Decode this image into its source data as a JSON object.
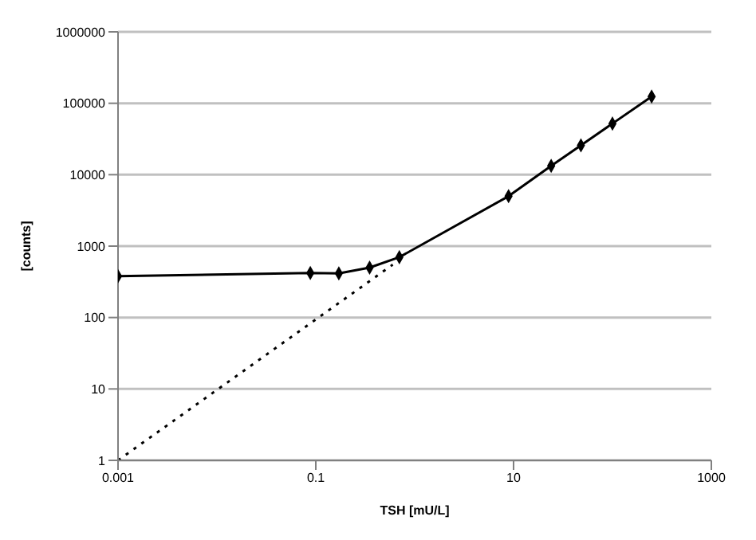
{
  "chart_data": {
    "type": "line",
    "xlabel": "TSH [mU/L]",
    "ylabel": "[counts]",
    "log": "xy",
    "grid": "y",
    "xlim": [
      0.001,
      1000
    ],
    "xticks": [
      0.001,
      0.1,
      10,
      1000
    ],
    "ylim": [
      1,
      1000000
    ],
    "yticks": [
      1,
      10,
      100,
      1000,
      10000,
      100000,
      1000000
    ],
    "series": [
      {
        "color": "#000000",
        "marker": "diamond",
        "line_style": "solid",
        "x": [
          0.001,
          0.088,
          0.171,
          0.35,
          0.7,
          8.9,
          24,
          48,
          100,
          249
        ],
        "values": [
          380,
          420,
          415,
          500,
          700,
          5000,
          13300,
          25700,
          52000,
          124000
        ]
      },
      {
        "color": "#000000",
        "marker": "none",
        "line_style": "dotted",
        "x": [
          0.001,
          0.6
        ],
        "values": [
          1,
          550
        ]
      }
    ]
  }
}
